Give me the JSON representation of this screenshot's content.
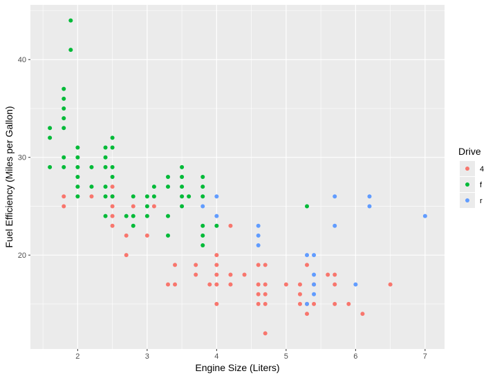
{
  "chart_data": {
    "type": "scatter",
    "title": "",
    "xlabel": "Engine Size (Liters)",
    "ylabel": "Fuel Efficiency (Miles per Gallon)",
    "xlim": [
      1.32,
      7.28
    ],
    "ylim": [
      10.4,
      45.6
    ],
    "xticks": [
      2,
      3,
      4,
      5,
      6,
      7
    ],
    "yticks": [
      20,
      30,
      40
    ],
    "grid": true,
    "panel_background": "#ebebeb",
    "grid_color": "#ffffff",
    "legend": {
      "title": "Drive",
      "placement": "right"
    },
    "series": [
      {
        "name": "4",
        "color": "#F8766D",
        "points": [
          [
            1.8,
            26
          ],
          [
            1.8,
            25
          ],
          [
            2.2,
            26
          ],
          [
            2.5,
            27
          ],
          [
            2.5,
            26
          ],
          [
            2.5,
            25
          ],
          [
            2.5,
            24
          ],
          [
            2.5,
            23
          ],
          [
            2.7,
            22
          ],
          [
            2.7,
            20
          ],
          [
            2.8,
            25
          ],
          [
            3.0,
            22
          ],
          [
            3.1,
            25
          ],
          [
            3.3,
            17
          ],
          [
            3.4,
            17
          ],
          [
            3.4,
            19
          ],
          [
            3.7,
            19
          ],
          [
            3.7,
            18
          ],
          [
            3.9,
            17
          ],
          [
            4.0,
            20
          ],
          [
            4.0,
            19
          ],
          [
            4.0,
            18
          ],
          [
            4.0,
            17
          ],
          [
            4.0,
            15
          ],
          [
            4.2,
            23
          ],
          [
            4.2,
            18
          ],
          [
            4.2,
            17
          ],
          [
            4.4,
            18
          ],
          [
            4.6,
            19
          ],
          [
            4.6,
            17
          ],
          [
            4.6,
            16
          ],
          [
            4.6,
            15
          ],
          [
            4.7,
            19
          ],
          [
            4.7,
            17
          ],
          [
            4.7,
            16
          ],
          [
            4.7,
            15
          ],
          [
            4.7,
            12
          ],
          [
            5.0,
            17
          ],
          [
            5.2,
            17
          ],
          [
            5.2,
            16
          ],
          [
            5.2,
            15
          ],
          [
            5.3,
            19
          ],
          [
            5.3,
            15
          ],
          [
            5.3,
            14
          ],
          [
            5.4,
            17
          ],
          [
            5.4,
            15
          ],
          [
            5.6,
            18
          ],
          [
            5.7,
            18
          ],
          [
            5.7,
            17
          ],
          [
            5.7,
            15
          ],
          [
            5.9,
            15
          ],
          [
            6.1,
            14
          ],
          [
            6.5,
            17
          ]
        ]
      },
      {
        "name": "f",
        "color": "#00BA38",
        "points": [
          [
            1.6,
            33
          ],
          [
            1.6,
            32
          ],
          [
            1.6,
            29
          ],
          [
            1.8,
            37
          ],
          [
            1.8,
            36
          ],
          [
            1.8,
            35
          ],
          [
            1.8,
            34
          ],
          [
            1.8,
            33
          ],
          [
            1.8,
            30
          ],
          [
            1.8,
            29
          ],
          [
            1.9,
            44
          ],
          [
            1.9,
            41
          ],
          [
            2.0,
            31
          ],
          [
            2.0,
            30
          ],
          [
            2.0,
            29
          ],
          [
            2.0,
            28
          ],
          [
            2.0,
            27
          ],
          [
            2.0,
            26
          ],
          [
            2.2,
            29
          ],
          [
            2.2,
            27
          ],
          [
            2.4,
            31
          ],
          [
            2.4,
            30
          ],
          [
            2.4,
            29
          ],
          [
            2.4,
            27
          ],
          [
            2.4,
            26
          ],
          [
            2.4,
            24
          ],
          [
            2.5,
            32
          ],
          [
            2.5,
            31
          ],
          [
            2.5,
            29
          ],
          [
            2.5,
            28
          ],
          [
            2.5,
            26
          ],
          [
            2.7,
            24
          ],
          [
            2.8,
            26
          ],
          [
            2.8,
            24
          ],
          [
            2.8,
            23
          ],
          [
            3.0,
            26
          ],
          [
            3.0,
            25
          ],
          [
            3.0,
            24
          ],
          [
            3.1,
            27
          ],
          [
            3.1,
            26
          ],
          [
            3.3,
            28
          ],
          [
            3.3,
            27
          ],
          [
            3.3,
            24
          ],
          [
            3.3,
            22
          ],
          [
            3.5,
            29
          ],
          [
            3.5,
            28
          ],
          [
            3.5,
            27
          ],
          [
            3.5,
            26
          ],
          [
            3.5,
            25
          ],
          [
            3.6,
            26
          ],
          [
            3.8,
            28
          ],
          [
            3.8,
            27
          ],
          [
            3.8,
            26
          ],
          [
            3.8,
            23
          ],
          [
            3.8,
            22
          ],
          [
            3.8,
            21
          ],
          [
            4.0,
            23
          ],
          [
            5.3,
            25
          ]
        ]
      },
      {
        "name": "r",
        "color": "#619CFF",
        "points": [
          [
            3.8,
            25
          ],
          [
            4.0,
            26
          ],
          [
            4.0,
            24
          ],
          [
            4.6,
            23
          ],
          [
            4.6,
            22
          ],
          [
            4.6,
            21
          ],
          [
            5.3,
            20
          ],
          [
            5.3,
            15
          ],
          [
            5.4,
            20
          ],
          [
            5.4,
            18
          ],
          [
            5.4,
            17
          ],
          [
            5.4,
            16
          ],
          [
            5.7,
            26
          ],
          [
            5.7,
            23
          ],
          [
            6.0,
            17
          ],
          [
            6.2,
            26
          ],
          [
            6.2,
            25
          ],
          [
            7.0,
            24
          ]
        ]
      }
    ]
  }
}
